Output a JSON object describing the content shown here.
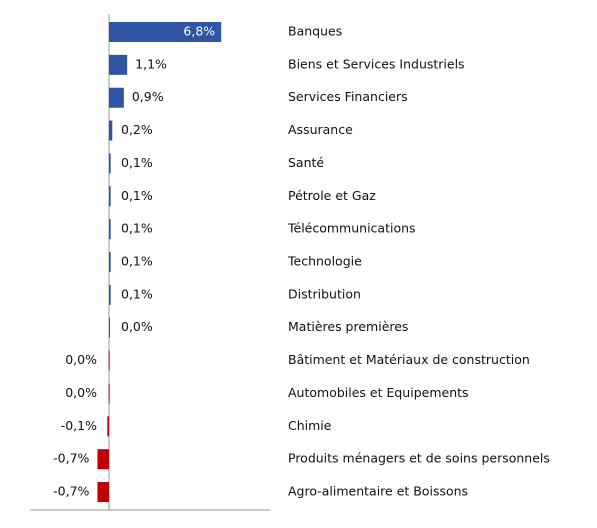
{
  "chart_data": {
    "type": "hbar",
    "categories": [
      "Banques",
      "Biens et Services Industriels",
      "Services Financiers",
      "Assurance",
      "Santé",
      "Pétrole et Gaz",
      "Télécommunications",
      "Technologie",
      "Distribution",
      "Matières premières",
      "Bâtiment et Matériaux de construction",
      "Automobiles et Equipements",
      "Chimie",
      "Produits ménagers et de soins personnels",
      "Agro-alimentaire et Boissons"
    ],
    "values": [
      6.8,
      1.1,
      0.9,
      0.2,
      0.1,
      0.1,
      0.1,
      0.1,
      0.1,
      0.02,
      -0.02,
      -0.02,
      -0.1,
      -0.7,
      -0.7
    ],
    "value_labels": [
      "6,8%",
      "1,1%",
      "0,9%",
      "0,2%",
      "0,1%",
      "0,1%",
      "0,1%",
      "0,1%",
      "0,1%",
      "0,0%",
      "0,0%",
      "0,0%",
      "-0,1%",
      "-0,7%",
      "-0,7%"
    ],
    "positive_color": "#2f54a3",
    "negative_color": "#c00000"
  }
}
